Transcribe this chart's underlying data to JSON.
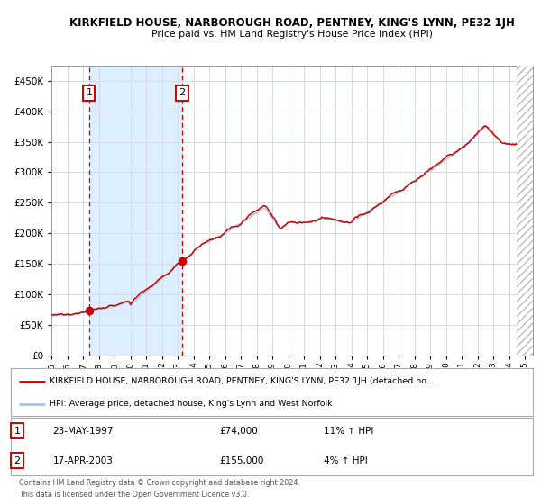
{
  "title": "KIRKFIELD HOUSE, NARBOROUGH ROAD, PENTNEY, KING'S LYNN, PE32 1JH",
  "subtitle": "Price paid vs. HM Land Registry's House Price Index (HPI)",
  "legend_line1": "KIRKFIELD HOUSE, NARBOROUGH ROAD, PENTNEY, KING'S LYNN, PE32 1JH (detached ho…",
  "legend_line2": "HPI: Average price, detached house, King's Lynn and West Norfolk",
  "table_row1_num": "1",
  "table_row1_date": "23-MAY-1997",
  "table_row1_price": "£74,000",
  "table_row1_hpi": "11% ↑ HPI",
  "table_row2_num": "2",
  "table_row2_date": "17-APR-2003",
  "table_row2_price": "£155,000",
  "table_row2_hpi": "4% ↑ HPI",
  "footer": "Contains HM Land Registry data © Crown copyright and database right 2024.\nThis data is licensed under the Open Government Licence v3.0.",
  "sale1_year": 1997.39,
  "sale1_value": 74000,
  "sale2_year": 2003.29,
  "sale2_value": 155000,
  "hpi_color": "#a8c8e8",
  "property_color": "#cc0000",
  "background_color": "#ffffff",
  "grid_color": "#d0dde8",
  "shade_color": "#ddeeff",
  "ylim": [
    0,
    475000
  ],
  "xlim_start": 1995.0,
  "xlim_end": 2025.5,
  "hatch_start": 2024.5
}
